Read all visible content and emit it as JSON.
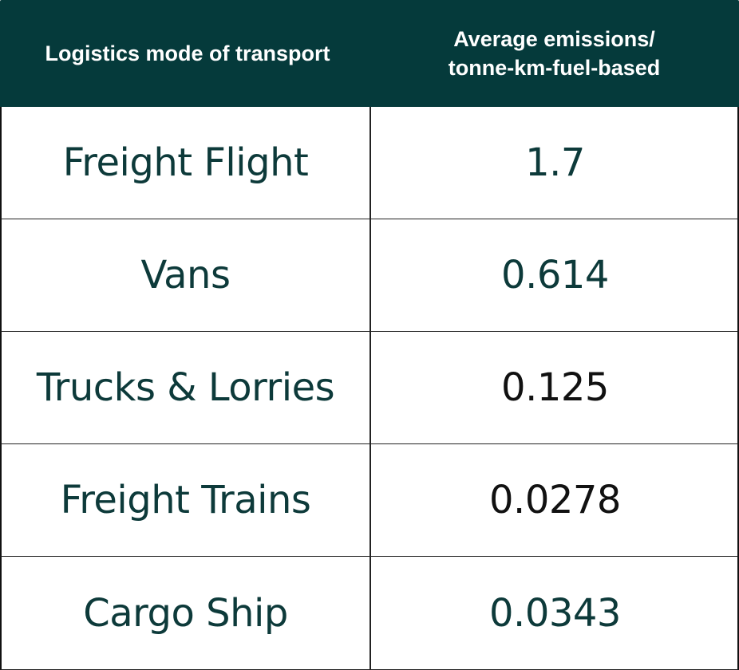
{
  "header": {
    "col1": "Logistics mode of transport",
    "col2_line1": "Average emissions/",
    "col2_line2": "tonne-km-fuel-based"
  },
  "rows": [
    {
      "mode": "Freight Flight",
      "value": "1.7"
    },
    {
      "mode": "Vans",
      "value": "0.614"
    },
    {
      "mode": "Trucks & Lorries",
      "value": "0.125"
    },
    {
      "mode": "Freight Trains",
      "value": "0.0278"
    },
    {
      "mode": "Cargo Ship",
      "value": "0.0343"
    }
  ],
  "colors": {
    "header_bg": "#053a3b",
    "header_text": "#ffffff",
    "body_text": "#0d3a3a"
  }
}
